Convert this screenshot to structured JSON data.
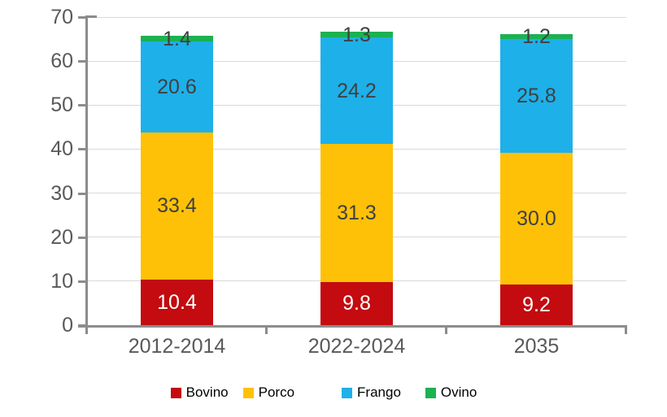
{
  "chart_data": {
    "type": "bar",
    "stacked": true,
    "title": "",
    "categories": [
      "2012-2014",
      "2022-2024",
      "2035"
    ],
    "series": [
      {
        "name": "Bovino",
        "color": "#c30b10",
        "label_color": "#ffffff",
        "values": [
          10.4,
          9.8,
          9.2
        ]
      },
      {
        "name": "Porco",
        "color": "#ffc107",
        "label_color": "#404040",
        "values": [
          33.4,
          31.3,
          30.0
        ]
      },
      {
        "name": "Frango",
        "color": "#1eb0e9",
        "label_color": "#404040",
        "values": [
          20.6,
          24.2,
          25.8
        ]
      },
      {
        "name": "Ovino",
        "color": "#1cb152",
        "label_color": "#404040",
        "values": [
          1.4,
          1.3,
          1.2
        ]
      }
    ],
    "ylim": [
      0,
      70
    ],
    "y_ticks": [
      0,
      10,
      20,
      30,
      40,
      50,
      60,
      70
    ],
    "grid": true,
    "legend_position": "bottom",
    "colors": {
      "axis": "#8c8c8c",
      "gridline": "#d9d9d9",
      "tick_label": "#595959",
      "legend_text": "#000000",
      "background": "#ffffff"
    }
  }
}
